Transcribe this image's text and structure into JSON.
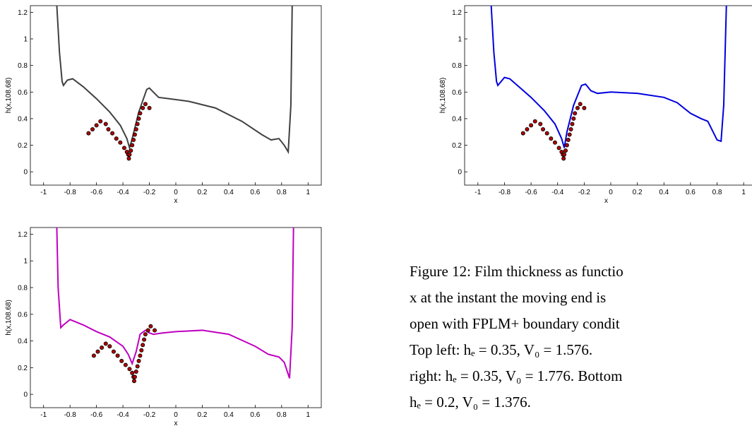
{
  "chart_data": [
    {
      "type": "line",
      "ylabel": "h(x,108.68)",
      "xlabel": "x",
      "xlim": [
        -1.1,
        1.1
      ],
      "ylim": [
        -0.1,
        1.25
      ],
      "xticks": [
        -1,
        -0.8,
        -0.6,
        -0.4,
        -0.2,
        0,
        0.2,
        0.4,
        0.6,
        0.8,
        1
      ],
      "yticks": [
        0,
        0.2,
        0.4,
        0.6,
        0.8,
        1,
        1.2
      ],
      "series": [
        {
          "type": "line",
          "color": "#404040",
          "x": [
            -0.9,
            -0.88,
            -0.86,
            -0.85,
            -0.82,
            -0.78,
            -0.7,
            -0.6,
            -0.5,
            -0.42,
            -0.37,
            -0.35,
            -0.33,
            -0.28,
            -0.22,
            -0.2,
            -0.17,
            -0.13,
            -0.05,
            0.1,
            0.3,
            0.5,
            0.65,
            0.72,
            0.78,
            0.82,
            0.85,
            0.87,
            0.88
          ],
          "values": [
            1.25,
            0.9,
            0.68,
            0.65,
            0.69,
            0.7,
            0.64,
            0.55,
            0.45,
            0.35,
            0.25,
            0.18,
            0.25,
            0.45,
            0.62,
            0.63,
            0.6,
            0.56,
            0.55,
            0.53,
            0.48,
            0.38,
            0.28,
            0.24,
            0.25,
            0.2,
            0.15,
            0.5,
            1.25
          ]
        },
        {
          "type": "scatter",
          "color": "#b00000",
          "x": [
            -0.66,
            -0.63,
            -0.6,
            -0.57,
            -0.53,
            -0.51,
            -0.48,
            -0.45,
            -0.42,
            -0.39,
            -0.37,
            -0.36,
            -0.355,
            -0.35,
            -0.34,
            -0.33,
            -0.32,
            -0.31,
            -0.3,
            -0.29,
            -0.28,
            -0.27,
            -0.25,
            -0.23,
            -0.2
          ],
          "values": [
            0.29,
            0.32,
            0.35,
            0.38,
            0.36,
            0.32,
            0.29,
            0.25,
            0.22,
            0.18,
            0.15,
            0.13,
            0.1,
            0.13,
            0.16,
            0.2,
            0.24,
            0.28,
            0.32,
            0.36,
            0.4,
            0.44,
            0.48,
            0.51,
            0.48
          ]
        }
      ]
    },
    {
      "type": "line",
      "ylabel": "h(x,108.68)",
      "xlabel": "x",
      "xlim": [
        -1.1,
        1.1
      ],
      "ylim": [
        -0.1,
        1.25
      ],
      "xticks": [
        -1,
        -0.8,
        -0.6,
        -0.4,
        -0.2,
        0,
        0.2,
        0.4,
        0.6,
        0.8,
        1
      ],
      "yticks": [
        0,
        0.2,
        0.4,
        0.6,
        0.8,
        1,
        1.2
      ],
      "series": [
        {
          "type": "line",
          "color": "#0000e0",
          "x": [
            -0.9,
            -0.88,
            -0.86,
            -0.85,
            -0.8,
            -0.76,
            -0.6,
            -0.5,
            -0.42,
            -0.37,
            -0.35,
            -0.33,
            -0.28,
            -0.22,
            -0.19,
            -0.15,
            -0.1,
            0,
            0.2,
            0.4,
            0.5,
            0.6,
            0.68,
            0.73,
            0.77,
            0.8,
            0.83,
            0.85,
            0.87
          ],
          "values": [
            1.25,
            0.9,
            0.68,
            0.65,
            0.71,
            0.7,
            0.56,
            0.46,
            0.36,
            0.25,
            0.18,
            0.3,
            0.5,
            0.65,
            0.66,
            0.61,
            0.59,
            0.6,
            0.59,
            0.56,
            0.52,
            0.44,
            0.4,
            0.38,
            0.3,
            0.24,
            0.23,
            0.5,
            1.25
          ]
        },
        {
          "type": "scatter",
          "color": "#b00000",
          "x": [
            -0.66,
            -0.63,
            -0.6,
            -0.57,
            -0.53,
            -0.51,
            -0.48,
            -0.45,
            -0.42,
            -0.39,
            -0.37,
            -0.36,
            -0.355,
            -0.35,
            -0.34,
            -0.33,
            -0.32,
            -0.31,
            -0.3,
            -0.29,
            -0.28,
            -0.27,
            -0.25,
            -0.23,
            -0.2
          ],
          "values": [
            0.29,
            0.32,
            0.35,
            0.38,
            0.36,
            0.32,
            0.29,
            0.25,
            0.22,
            0.18,
            0.15,
            0.13,
            0.1,
            0.13,
            0.16,
            0.2,
            0.24,
            0.28,
            0.32,
            0.36,
            0.4,
            0.44,
            0.48,
            0.51,
            0.48
          ]
        }
      ]
    },
    {
      "type": "line",
      "ylabel": "h(x,108.68)",
      "xlabel": "x",
      "xlim": [
        -1.1,
        1.1
      ],
      "ylim": [
        -0.1,
        1.25
      ],
      "xticks": [
        -1,
        -0.8,
        -0.6,
        -0.4,
        -0.2,
        0,
        0.2,
        0.4,
        0.6,
        0.8,
        1
      ],
      "yticks": [
        0,
        0.2,
        0.4,
        0.6,
        0.8,
        1,
        1.2
      ],
      "series": [
        {
          "type": "line",
          "color": "#c000c0",
          "x": [
            -0.9,
            -0.89,
            -0.87,
            -0.85,
            -0.8,
            -0.7,
            -0.6,
            -0.5,
            -0.4,
            -0.36,
            -0.33,
            -0.3,
            -0.27,
            -0.23,
            -0.2,
            -0.17,
            -0.1,
            0,
            0.2,
            0.4,
            0.6,
            0.7,
            0.78,
            0.82,
            0.86,
            0.88,
            0.89
          ],
          "values": [
            1.25,
            0.8,
            0.5,
            0.52,
            0.56,
            0.52,
            0.47,
            0.43,
            0.36,
            0.3,
            0.23,
            0.32,
            0.45,
            0.48,
            0.46,
            0.45,
            0.46,
            0.47,
            0.48,
            0.45,
            0.36,
            0.3,
            0.28,
            0.24,
            0.12,
            0.5,
            1.25
          ]
        },
        {
          "type": "scatter",
          "color": "#b00000",
          "x": [
            -0.62,
            -0.59,
            -0.56,
            -0.53,
            -0.5,
            -0.47,
            -0.44,
            -0.41,
            -0.38,
            -0.35,
            -0.33,
            -0.32,
            -0.315,
            -0.31,
            -0.3,
            -0.29,
            -0.28,
            -0.27,
            -0.26,
            -0.25,
            -0.24,
            -0.23,
            -0.21,
            -0.19,
            -0.16
          ],
          "values": [
            0.29,
            0.32,
            0.35,
            0.38,
            0.36,
            0.32,
            0.29,
            0.25,
            0.22,
            0.19,
            0.16,
            0.13,
            0.1,
            0.13,
            0.17,
            0.21,
            0.25,
            0.29,
            0.33,
            0.37,
            0.41,
            0.45,
            0.48,
            0.51,
            0.48
          ]
        }
      ]
    }
  ],
  "caption": {
    "lines": [
      "Figure 12: Film thickness as functio",
      "x at the instant the moving end is",
      "open with FPLM+ boundary condit",
      "Top left:  hₑ  =  0.35,  V₀  =  1.576.",
      "right: hₑ = 0.35, V₀ = 1.776. Bottom",
      "hₑ = 0.2, V₀ = 1.376."
    ]
  }
}
